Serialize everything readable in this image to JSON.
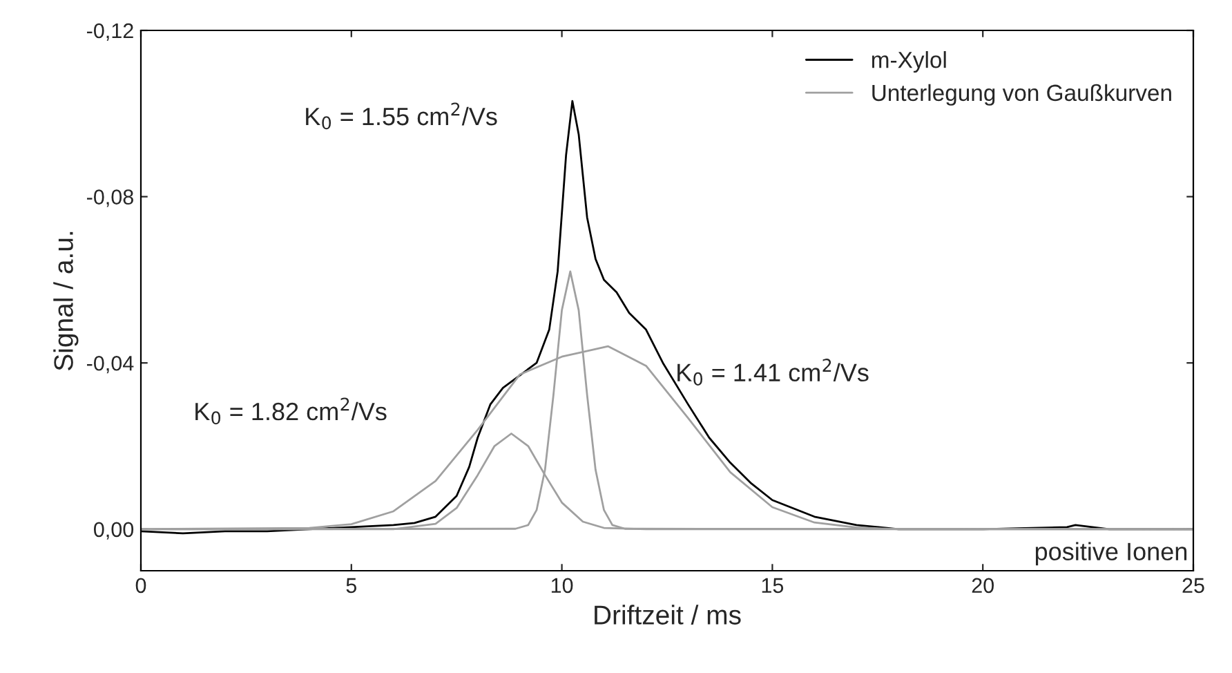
{
  "chart_data": {
    "type": "line",
    "xlabel": "Driftzeit / ms",
    "ylabel": "Signal / a.u.",
    "xlim": [
      0,
      25
    ],
    "xticks": [
      0,
      5,
      10,
      15,
      20,
      25
    ],
    "ylim": [
      0.01,
      -0.12
    ],
    "yticks": [
      {
        "value": 0.0,
        "label": "0,00"
      },
      {
        "value": -0.04,
        "label": "-0,04"
      },
      {
        "value": -0.08,
        "label": "-0,08"
      },
      {
        "value": -0.12,
        "label": "-0,12"
      }
    ],
    "legend": "top right",
    "grid": false,
    "series": [
      {
        "name": "m-Xylol",
        "color": "#000000",
        "x": [
          0,
          1,
          2,
          3,
          4,
          5,
          6,
          6.5,
          7,
          7.5,
          7.8,
          8,
          8.3,
          8.6,
          9,
          9.4,
          9.7,
          9.9,
          10.1,
          10.25,
          10.4,
          10.6,
          10.8,
          11,
          11.3,
          11.6,
          12,
          12.4,
          13,
          13.5,
          14,
          14.5,
          15,
          15.5,
          16,
          17,
          18,
          20,
          22,
          22.2,
          23,
          25
        ],
        "values": [
          0.0005,
          0.001,
          0.0005,
          0.0005,
          0,
          -0.0005,
          -0.001,
          -0.0015,
          -0.003,
          -0.008,
          -0.015,
          -0.022,
          -0.03,
          -0.034,
          -0.037,
          -0.04,
          -0.048,
          -0.062,
          -0.09,
          -0.103,
          -0.095,
          -0.075,
          -0.065,
          -0.06,
          -0.057,
          -0.052,
          -0.048,
          -0.04,
          -0.03,
          -0.022,
          -0.016,
          -0.011,
          -0.007,
          -0.005,
          -0.003,
          -0.001,
          0,
          0,
          -0.0005,
          -0.001,
          0,
          0
        ]
      },
      {
        "name": "Unterlegung von Gaußkurven",
        "color": "#a0a0a0",
        "x": [
          0,
          6,
          7,
          7.5,
          8,
          8.4,
          8.8,
          9.2,
          9.6,
          10,
          10.5,
          11,
          12,
          25
        ],
        "values": [
          0,
          0,
          -0.0013,
          -0.0051,
          -0.013,
          -0.02,
          -0.023,
          -0.02,
          -0.013,
          -0.0064,
          -0.0018,
          -0.0003,
          0,
          0
        ]
      },
      {
        "color": "#a0a0a0",
        "x": [
          0,
          8.9,
          9.2,
          9.4,
          9.6,
          9.8,
          10,
          10.2,
          10.4,
          10.6,
          10.8,
          11,
          11.2,
          11.5,
          25
        ],
        "values": [
          0,
          -0.0001,
          -0.001,
          -0.0046,
          -0.0143,
          -0.0323,
          -0.0527,
          -0.062,
          -0.0527,
          -0.0323,
          -0.0143,
          -0.0046,
          -0.001,
          -0.0001,
          0
        ]
      },
      {
        "color": "#a0a0a0",
        "x": [
          0,
          4,
          5,
          6,
          7,
          8,
          9,
          10,
          11.1,
          12,
          13,
          14,
          15,
          16,
          17,
          18,
          20,
          25
        ],
        "values": [
          0,
          -0.0003,
          -0.0012,
          -0.0043,
          -0.0116,
          -0.0239,
          -0.0372,
          -0.0415,
          -0.044,
          -0.0393,
          -0.0267,
          -0.0137,
          -0.0053,
          -0.0016,
          -0.0004,
          0,
          0,
          0
        ]
      }
    ],
    "annotations": [
      "K$_{0}$ = 1.55 cm$^{2}$/Vs",
      "K$_{0}$ = 1.82 cm$^{2}$/Vs",
      "K$_{0}$ = 1.41 cm$^{2}$/Vs",
      "positive Ionen"
    ]
  }
}
